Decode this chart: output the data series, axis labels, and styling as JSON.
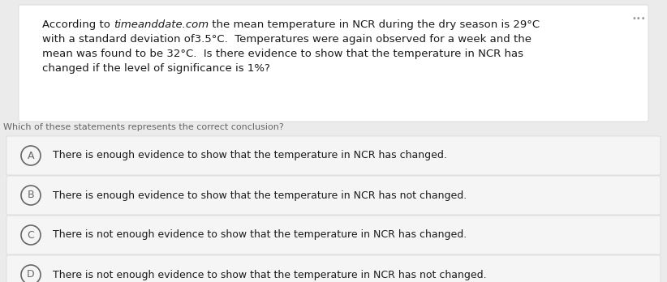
{
  "bg_color": "#ebebeb",
  "question_box_color": "#ffffff",
  "option_box_color": "#f5f5f5",
  "option_border_color": "#d8d8d8",
  "text_color": "#1a1a1a",
  "subtext_color": "#666666",
  "circle_edge_color": "#666666",
  "subquestion": "Which of these statements represents the correct conclusion?",
  "options": [
    {
      "label": "A",
      "text": "There is enough evidence to show that the temperature in NCR has changed."
    },
    {
      "label": "B",
      "text": "There is enough evidence to show that the temperature in NCR has not changed."
    },
    {
      "label": "C",
      "text": "There is not enough evidence to show that the temperature in NCR has changed."
    },
    {
      "label": "D",
      "text": "There is not enough evidence to show that the temperature in NCR has not changed."
    }
  ],
  "dots_color": "#999999",
  "figsize": [
    8.22,
    3.48
  ],
  "dpi": 100,
  "q_lines": [
    [
      "normal",
      "According to "
    ],
    [
      "italic",
      "timeanddate.com"
    ],
    [
      "normal",
      " the mean temperature in NCR during the dry season is 29°C"
    ]
  ],
  "q_lines2": [
    "with a standard deviation of3.5°C.  Temperatures were again observed for a week and the",
    "mean was found to be 32°C.  Is there evidence to show that the temperature in NCR has",
    "changed if the level of significance is 1%?"
  ]
}
